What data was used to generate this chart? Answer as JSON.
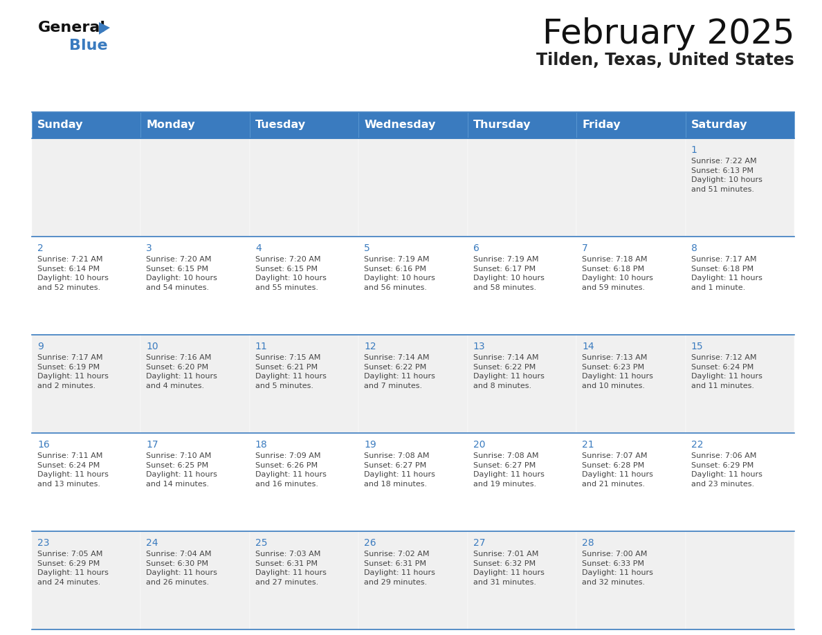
{
  "title": "February 2025",
  "subtitle": "Tilden, Texas, United States",
  "header_bg": "#3a7bbf",
  "header_text_color": "#ffffff",
  "cell_bg_odd": "#f0f0f0",
  "cell_bg_even": "#ffffff",
  "border_color": "#3a7bbf",
  "day_number_color": "#3a7bbf",
  "day_number_size": 10,
  "info_text_color": "#444444",
  "info_text_size": 8.0,
  "days_of_week": [
    "Sunday",
    "Monday",
    "Tuesday",
    "Wednesday",
    "Thursday",
    "Friday",
    "Saturday"
  ],
  "calendar": [
    [
      null,
      null,
      null,
      null,
      null,
      null,
      1
    ],
    [
      2,
      3,
      4,
      5,
      6,
      7,
      8
    ],
    [
      9,
      10,
      11,
      12,
      13,
      14,
      15
    ],
    [
      16,
      17,
      18,
      19,
      20,
      21,
      22
    ],
    [
      23,
      24,
      25,
      26,
      27,
      28,
      null
    ]
  ],
  "cell_data": {
    "1": {
      "sunrise": "7:22 AM",
      "sunset": "6:13 PM",
      "daylight_hours": "10",
      "daylight_minutes": "51 minutes"
    },
    "2": {
      "sunrise": "7:21 AM",
      "sunset": "6:14 PM",
      "daylight_hours": "10",
      "daylight_minutes": "52 minutes"
    },
    "3": {
      "sunrise": "7:20 AM",
      "sunset": "6:15 PM",
      "daylight_hours": "10",
      "daylight_minutes": "54 minutes"
    },
    "4": {
      "sunrise": "7:20 AM",
      "sunset": "6:15 PM",
      "daylight_hours": "10",
      "daylight_minutes": "55 minutes"
    },
    "5": {
      "sunrise": "7:19 AM",
      "sunset": "6:16 PM",
      "daylight_hours": "10",
      "daylight_minutes": "56 minutes"
    },
    "6": {
      "sunrise": "7:19 AM",
      "sunset": "6:17 PM",
      "daylight_hours": "10",
      "daylight_minutes": "58 minutes"
    },
    "7": {
      "sunrise": "7:18 AM",
      "sunset": "6:18 PM",
      "daylight_hours": "10",
      "daylight_minutes": "59 minutes"
    },
    "8": {
      "sunrise": "7:17 AM",
      "sunset": "6:18 PM",
      "daylight_hours": "11",
      "daylight_minutes": "1 minute"
    },
    "9": {
      "sunrise": "7:17 AM",
      "sunset": "6:19 PM",
      "daylight_hours": "11",
      "daylight_minutes": "2 minutes"
    },
    "10": {
      "sunrise": "7:16 AM",
      "sunset": "6:20 PM",
      "daylight_hours": "11",
      "daylight_minutes": "4 minutes"
    },
    "11": {
      "sunrise": "7:15 AM",
      "sunset": "6:21 PM",
      "daylight_hours": "11",
      "daylight_minutes": "5 minutes"
    },
    "12": {
      "sunrise": "7:14 AM",
      "sunset": "6:22 PM",
      "daylight_hours": "11",
      "daylight_minutes": "7 minutes"
    },
    "13": {
      "sunrise": "7:14 AM",
      "sunset": "6:22 PM",
      "daylight_hours": "11",
      "daylight_minutes": "8 minutes"
    },
    "14": {
      "sunrise": "7:13 AM",
      "sunset": "6:23 PM",
      "daylight_hours": "11",
      "daylight_minutes": "10 minutes"
    },
    "15": {
      "sunrise": "7:12 AM",
      "sunset": "6:24 PM",
      "daylight_hours": "11",
      "daylight_minutes": "11 minutes"
    },
    "16": {
      "sunrise": "7:11 AM",
      "sunset": "6:24 PM",
      "daylight_hours": "11",
      "daylight_minutes": "13 minutes"
    },
    "17": {
      "sunrise": "7:10 AM",
      "sunset": "6:25 PM",
      "daylight_hours": "11",
      "daylight_minutes": "14 minutes"
    },
    "18": {
      "sunrise": "7:09 AM",
      "sunset": "6:26 PM",
      "daylight_hours": "11",
      "daylight_minutes": "16 minutes"
    },
    "19": {
      "sunrise": "7:08 AM",
      "sunset": "6:27 PM",
      "daylight_hours": "11",
      "daylight_minutes": "18 minutes"
    },
    "20": {
      "sunrise": "7:08 AM",
      "sunset": "6:27 PM",
      "daylight_hours": "11",
      "daylight_minutes": "19 minutes"
    },
    "21": {
      "sunrise": "7:07 AM",
      "sunset": "6:28 PM",
      "daylight_hours": "11",
      "daylight_minutes": "21 minutes"
    },
    "22": {
      "sunrise": "7:06 AM",
      "sunset": "6:29 PM",
      "daylight_hours": "11",
      "daylight_minutes": "23 minutes"
    },
    "23": {
      "sunrise": "7:05 AM",
      "sunset": "6:29 PM",
      "daylight_hours": "11",
      "daylight_minutes": "24 minutes"
    },
    "24": {
      "sunrise": "7:04 AM",
      "sunset": "6:30 PM",
      "daylight_hours": "11",
      "daylight_minutes": "26 minutes"
    },
    "25": {
      "sunrise": "7:03 AM",
      "sunset": "6:31 PM",
      "daylight_hours": "11",
      "daylight_minutes": "27 minutes"
    },
    "26": {
      "sunrise": "7:02 AM",
      "sunset": "6:31 PM",
      "daylight_hours": "11",
      "daylight_minutes": "29 minutes"
    },
    "27": {
      "sunrise": "7:01 AM",
      "sunset": "6:32 PM",
      "daylight_hours": "11",
      "daylight_minutes": "31 minutes"
    },
    "28": {
      "sunrise": "7:00 AM",
      "sunset": "6:33 PM",
      "daylight_hours": "11",
      "daylight_minutes": "32 minutes"
    }
  }
}
